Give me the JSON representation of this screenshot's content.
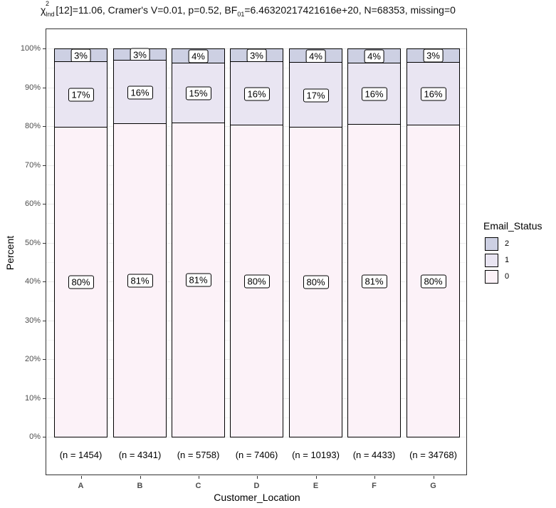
{
  "title": {
    "chi_symbol": "χ",
    "chi_sup": "2",
    "chi_sub": "Ind",
    "part1": "[12]=11.06, Cramer's V=0.01, p=0.52, BF",
    "bf_sub": "01",
    "part2": "=6.46320217421616e+20, N=68353, missing=0"
  },
  "axes": {
    "ylabel": "Percent",
    "xlabel": "Customer_Location",
    "yticks": [
      "0%",
      "10%",
      "20%",
      "30%",
      "40%",
      "50%",
      "60%",
      "70%",
      "80%",
      "90%",
      "100%"
    ]
  },
  "legend": {
    "title": "Email_Status",
    "items": [
      {
        "label": "2",
        "color": "#cdd0e3"
      },
      {
        "label": "1",
        "color": "#e9e5f2"
      },
      {
        "label": "0",
        "color": "#fcf2f8"
      }
    ]
  },
  "bars": [
    {
      "category": "A",
      "n_label": "(n = 1454)",
      "pct0": 79.8,
      "pct1": 16.9,
      "pct2": 3.3,
      "lbl0": "80%",
      "lbl1": "17%",
      "lbl2": "3%"
    },
    {
      "category": "B",
      "n_label": "(n = 4341)",
      "pct0": 80.7,
      "pct1": 16.4,
      "pct2": 2.9,
      "lbl0": "81%",
      "lbl1": "16%",
      "lbl2": "3%"
    },
    {
      "category": "C",
      "n_label": "(n = 5758)",
      "pct0": 80.9,
      "pct1": 15.4,
      "pct2": 3.7,
      "lbl0": "81%",
      "lbl1": "15%",
      "lbl2": "4%"
    },
    {
      "category": "D",
      "n_label": "(n = 7406)",
      "pct0": 80.3,
      "pct1": 16.4,
      "pct2": 3.3,
      "lbl0": "80%",
      "lbl1": "16%",
      "lbl2": "3%"
    },
    {
      "category": "E",
      "n_label": "(n = 10193)",
      "pct0": 79.8,
      "pct1": 16.7,
      "pct2": 3.5,
      "lbl0": "80%",
      "lbl1": "17%",
      "lbl2": "4%"
    },
    {
      "category": "F",
      "n_label": "(n = 4433)",
      "pct0": 80.6,
      "pct1": 15.8,
      "pct2": 3.6,
      "lbl0": "81%",
      "lbl1": "16%",
      "lbl2": "4%"
    },
    {
      "category": "G",
      "n_label": "(n = 34768)",
      "pct0": 80.4,
      "pct1": 16.2,
      "pct2": 3.4,
      "lbl0": "80%",
      "lbl1": "16%",
      "lbl2": "3%"
    }
  ],
  "chart_data": {
    "type": "bar",
    "stacked": true,
    "title": "χ²_Ind[12]=11.06, Cramer's V=0.01, p=0.52, BF01=6.46320217421616e+20, N=68353, missing=0",
    "xlabel": "Customer_Location",
    "ylabel": "Percent",
    "ylim": [
      0,
      100
    ],
    "categories": [
      "A",
      "B",
      "C",
      "D",
      "E",
      "F",
      "G"
    ],
    "series": [
      {
        "name": "0",
        "values": [
          80,
          81,
          81,
          80,
          80,
          81,
          80
        ]
      },
      {
        "name": "1",
        "values": [
          17,
          16,
          15,
          16,
          17,
          16,
          16
        ]
      },
      {
        "name": "2",
        "values": [
          3,
          3,
          4,
          3,
          4,
          4,
          3
        ]
      }
    ],
    "sample_sizes": [
      1454,
      4341,
      5758,
      7406,
      10193,
      4433,
      34768
    ],
    "legend_title": "Email_Status",
    "legend_position": "right",
    "grid": true
  }
}
